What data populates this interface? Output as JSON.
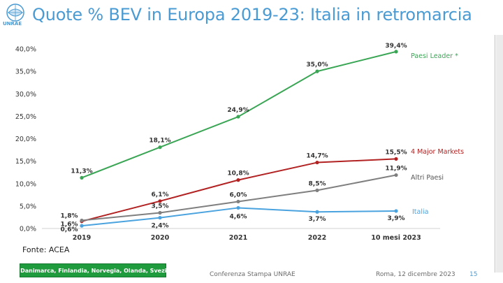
{
  "slide": {
    "title": "Quote % BEV in Europa 2019-23: Italia in retromarcia",
    "logo_text": "UNRAE",
    "source": "Fonte: ACEA",
    "footnote": "* Danimarca, Finlandia, Norvegia, Olanda, Svezia",
    "footer_center": "Conferenza Stampa UNRAE",
    "footer_date": "Roma, 12 dicembre 2023",
    "page_number": "15"
  },
  "chart_data": {
    "type": "line",
    "title": "Quote % BEV in Europa 2019-23",
    "xlabel": "",
    "ylabel": "",
    "categories": [
      "2019",
      "2020",
      "2021",
      "2022",
      "10 mesi 2023"
    ],
    "ylim": [
      0,
      40
    ],
    "yticks": [
      "0,0%",
      "5,0%",
      "10,0%",
      "15,0%",
      "20,0%",
      "25,0%",
      "30,0%",
      "35,0%",
      "40,0%"
    ],
    "grid": false,
    "series": [
      {
        "name": "Paesi Leader *",
        "color": "#3aa655",
        "values": [
          11.3,
          18.1,
          24.9,
          35.0,
          39.4
        ],
        "labels": [
          "11,3%",
          "18,1%",
          "24,9%",
          "35,0%",
          "39,4%"
        ]
      },
      {
        "name": "4 Major Markets",
        "color": "#b22222",
        "values": [
          1.6,
          6.1,
          10.8,
          14.7,
          15.5
        ],
        "labels": [
          "1,6%",
          "6,1%",
          "10,8%",
          "14,7%",
          "15,5%"
        ]
      },
      {
        "name": "Altri Paesi",
        "color": "#7f7f7f",
        "values": [
          1.8,
          3.5,
          6.0,
          8.5,
          11.9
        ],
        "labels": [
          "1,8%",
          "3,5%",
          "6,0%",
          "8,5%",
          "11,9%"
        ]
      },
      {
        "name": "Italia",
        "color": "#4aa3df",
        "values": [
          0.6,
          2.4,
          4.6,
          3.7,
          3.9
        ],
        "labels": [
          "0,6%",
          "2,4%",
          "4,6%",
          "3,7%",
          "3,9%"
        ]
      }
    ]
  }
}
